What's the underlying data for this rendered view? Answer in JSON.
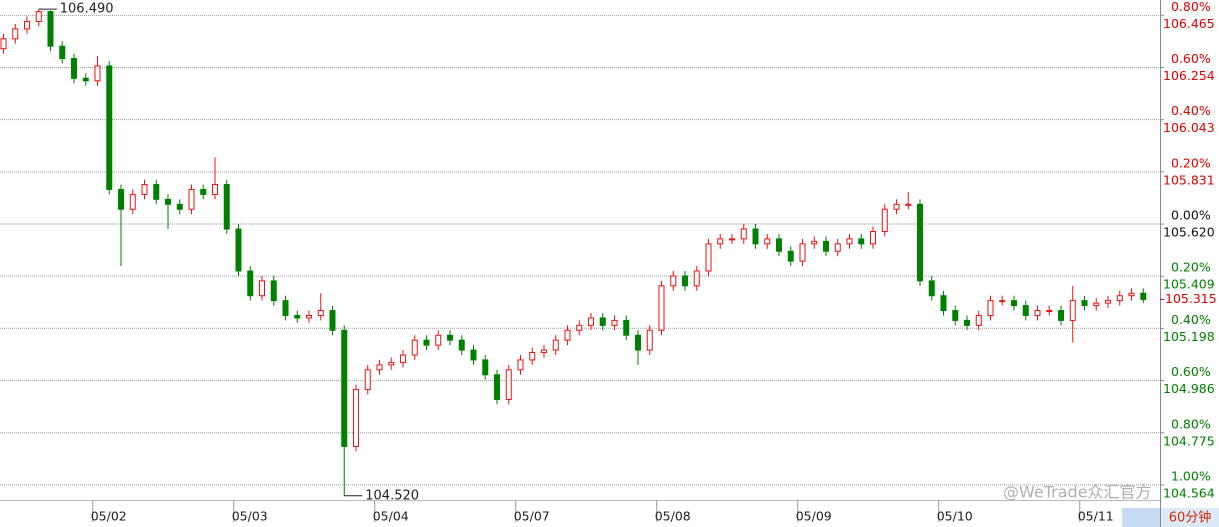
{
  "chart_data": {
    "type": "candlestick",
    "up_color": "#ee1111",
    "down_color": "#008000",
    "label_up_color": "#e00000",
    "label_down_color": "#008000",
    "grid": true,
    "categories": [
      null,
      null,
      null,
      null,
      null,
      null,
      null,
      null,
      null,
      "05/02",
      null,
      null,
      null,
      null,
      null,
      null,
      null,
      null,
      null,
      null,
      null,
      "05/03",
      null,
      null,
      null,
      null,
      null,
      null,
      null,
      null,
      null,
      null,
      null,
      "05/04",
      null,
      null,
      null,
      null,
      null,
      null,
      null,
      null,
      null,
      null,
      null,
      "05/07",
      null,
      null,
      null,
      null,
      null,
      null,
      null,
      null,
      null,
      null,
      null,
      "05/08",
      null,
      null,
      null,
      null,
      null,
      null,
      null,
      null,
      null,
      null,
      null,
      "05/09",
      null,
      null,
      null,
      null,
      null,
      null,
      null,
      null,
      null,
      null,
      null,
      "05/10",
      null,
      null,
      null,
      null,
      null,
      null,
      null,
      null,
      null,
      null,
      null,
      "05/11",
      null,
      null,
      null,
      null
    ],
    "open": [
      106.33,
      106.37,
      106.41,
      106.44,
      106.48,
      106.34,
      106.29,
      106.21,
      106.2,
      106.26,
      105.76,
      105.68,
      105.74,
      105.78,
      105.72,
      105.7,
      105.68,
      105.76,
      105.74,
      105.78,
      105.6,
      105.43,
      105.33,
      105.39,
      105.31,
      105.25,
      105.24,
      105.25,
      105.27,
      105.19,
      104.72,
      104.95,
      105.03,
      105.05,
      105.06,
      105.09,
      105.15,
      105.13,
      105.17,
      105.15,
      105.11,
      105.07,
      105.01,
      104.91,
      105.03,
      105.07,
      105.1,
      105.11,
      105.15,
      105.19,
      105.21,
      105.24,
      105.21,
      105.23,
      105.17,
      105.11,
      105.19,
      105.37,
      105.41,
      105.37,
      105.43,
      105.54,
      105.56,
      105.56,
      105.6,
      105.54,
      105.56,
      105.51,
      105.47,
      105.54,
      105.55,
      105.51,
      105.54,
      105.56,
      105.54,
      105.59,
      105.68,
      105.7,
      105.7,
      105.39,
      105.33,
      105.27,
      105.23,
      105.21,
      105.25,
      105.31,
      105.31,
      105.29,
      105.25,
      105.27,
      105.27,
      105.23,
      105.31,
      105.29,
      105.3,
      105.31,
      105.33,
      105.34
    ],
    "high": [
      106.39,
      106.43,
      106.46,
      106.49,
      106.485,
      106.36,
      106.31,
      106.23,
      106.3,
      106.28,
      105.78,
      105.76,
      105.8,
      105.8,
      105.74,
      105.72,
      105.78,
      105.78,
      105.89,
      105.8,
      105.62,
      105.45,
      105.41,
      105.41,
      105.33,
      105.27,
      105.27,
      105.34,
      105.29,
      105.21,
      104.97,
      105.05,
      105.07,
      105.08,
      105.11,
      105.17,
      105.17,
      105.19,
      105.19,
      105.17,
      105.13,
      105.09,
      105.03,
      105.05,
      105.09,
      105.12,
      105.13,
      105.17,
      105.21,
      105.23,
      105.26,
      105.26,
      105.25,
      105.25,
      105.19,
      105.21,
      105.39,
      105.43,
      105.43,
      105.45,
      105.56,
      105.58,
      105.58,
      105.62,
      105.62,
      105.58,
      105.58,
      105.53,
      105.56,
      105.57,
      105.57,
      105.56,
      105.58,
      105.58,
      105.61,
      105.7,
      105.72,
      105.75,
      105.72,
      105.41,
      105.35,
      105.29,
      105.25,
      105.27,
      105.33,
      105.33,
      105.33,
      105.31,
      105.29,
      105.29,
      105.29,
      105.37,
      105.33,
      105.32,
      105.33,
      105.35,
      105.36,
      105.36
    ],
    "low": [
      106.31,
      106.35,
      106.39,
      106.42,
      106.32,
      106.27,
      106.19,
      106.18,
      106.18,
      105.74,
      105.45,
      105.66,
      105.72,
      105.7,
      105.6,
      105.66,
      105.66,
      105.72,
      105.72,
      105.58,
      105.41,
      105.31,
      105.31,
      105.29,
      105.23,
      105.22,
      105.22,
      105.23,
      105.17,
      104.52,
      104.7,
      104.93,
      105.01,
      105.03,
      105.04,
      105.07,
      105.11,
      105.11,
      105.13,
      105.09,
      105.05,
      104.99,
      104.89,
      104.89,
      105.01,
      105.05,
      105.08,
      105.09,
      105.13,
      105.17,
      105.19,
      105.19,
      105.19,
      105.15,
      105.05,
      105.09,
      105.17,
      105.35,
      105.35,
      105.35,
      105.41,
      105.52,
      105.54,
      105.54,
      105.52,
      105.52,
      105.49,
      105.45,
      105.45,
      105.52,
      105.49,
      105.49,
      105.52,
      105.52,
      105.52,
      105.57,
      105.66,
      105.68,
      105.37,
      105.31,
      105.25,
      105.21,
      105.19,
      105.19,
      105.23,
      105.29,
      105.27,
      105.23,
      105.23,
      105.25,
      105.21,
      105.14,
      105.27,
      105.27,
      105.28,
      105.29,
      105.31,
      105.3
    ],
    "close": [
      106.37,
      106.41,
      106.44,
      106.48,
      106.34,
      106.29,
      106.21,
      106.2,
      106.26,
      105.76,
      105.68,
      105.74,
      105.78,
      105.72,
      105.7,
      105.68,
      105.76,
      105.74,
      105.78,
      105.6,
      105.43,
      105.33,
      105.39,
      105.31,
      105.25,
      105.24,
      105.25,
      105.27,
      105.19,
      104.72,
      104.95,
      105.03,
      105.05,
      105.06,
      105.09,
      105.15,
      105.13,
      105.17,
      105.15,
      105.11,
      105.07,
      105.01,
      104.91,
      105.03,
      105.07,
      105.1,
      105.11,
      105.15,
      105.19,
      105.21,
      105.24,
      105.21,
      105.23,
      105.17,
      105.11,
      105.19,
      105.37,
      105.41,
      105.37,
      105.43,
      105.54,
      105.56,
      105.56,
      105.6,
      105.54,
      105.56,
      105.51,
      105.47,
      105.54,
      105.55,
      105.51,
      105.54,
      105.56,
      105.54,
      105.59,
      105.68,
      105.7,
      105.7,
      105.39,
      105.33,
      105.27,
      105.23,
      105.21,
      105.25,
      105.31,
      105.31,
      105.29,
      105.25,
      105.27,
      105.27,
      105.23,
      105.31,
      105.29,
      105.3,
      105.31,
      105.33,
      105.34,
      105.315
    ],
    "ylim": [
      104.503,
      106.527
    ],
    "yticks": [
      106.465,
      106.254,
      106.043,
      105.831,
      {
        "value": 105.62,
        "label": "105.620"
      },
      105.409,
      105.198,
      104.986,
      104.775,
      104.564
    ],
    "y2lim": [
      -1.0576,
      0.8587
    ],
    "y2ticks": [
      {
        "value": 0.8,
        "label": "0.80%"
      },
      {
        "value": 0.6,
        "label": "0.60%"
      },
      {
        "value": 0.4,
        "label": "0.40%"
      },
      {
        "value": 0.2,
        "label": "0.20%"
      },
      {
        "value": 0,
        "label": "0.00%"
      },
      {
        "value": -0.2,
        "label": "0.20%"
      },
      {
        "value": -0.4,
        "label": "0.40%"
      },
      {
        "value": -0.6,
        "label": "0.60%"
      },
      {
        "value": -0.8,
        "label": "0.80%"
      },
      {
        "value": -1,
        "label": "1.00%"
      }
    ],
    "last_price": {
      "value": 105.315,
      "label": "105.315"
    },
    "annotations": [
      {
        "value": 106.49,
        "label": "106.490"
      },
      {
        "value": 104.52,
        "label": "104.520"
      }
    ],
    "period": "60分钟",
    "watermark": "@WeTrade众汇官方"
  }
}
